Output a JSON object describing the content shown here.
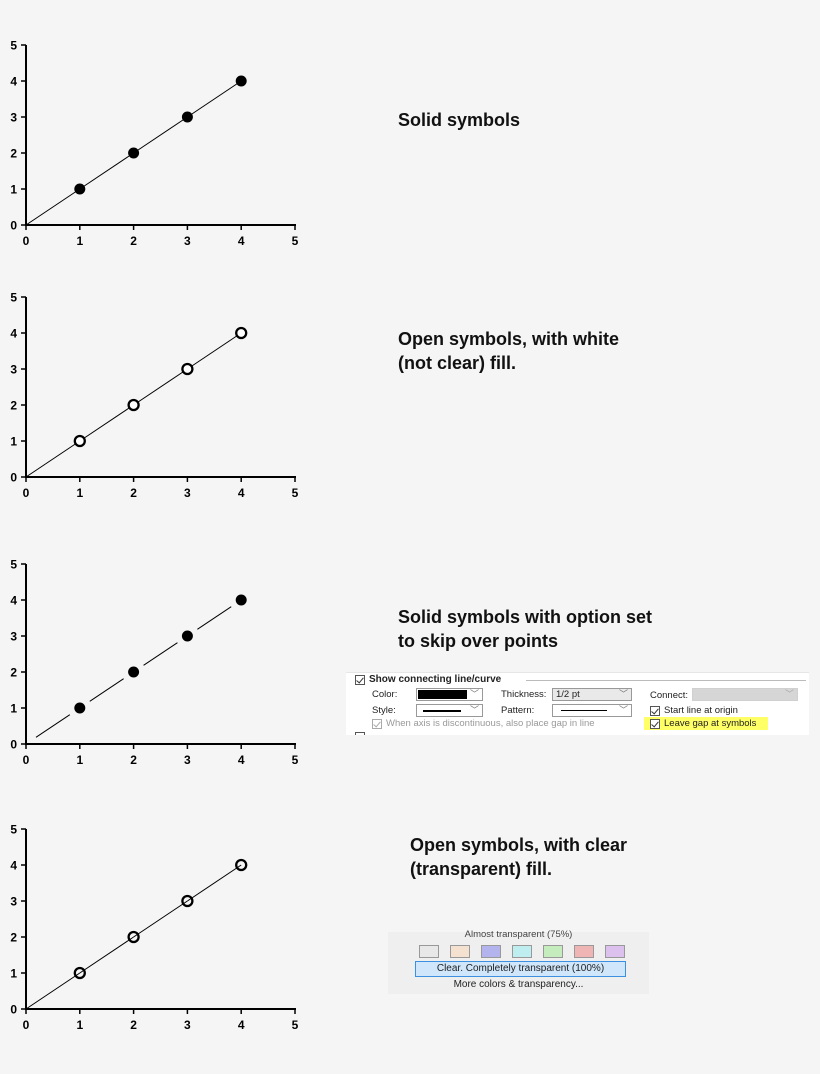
{
  "chart_data": [
    {
      "type": "scatter",
      "title": "Solid symbols",
      "x": [
        1,
        2,
        3,
        4
      ],
      "y": [
        1,
        2,
        3,
        4
      ],
      "line": {
        "connected": true,
        "start_at_origin": true,
        "gap_at_symbols": false
      },
      "symbol": {
        "shape": "circle",
        "fill": "solid",
        "color": "#000000"
      },
      "xlim": [
        0,
        5
      ],
      "ylim": [
        0,
        5
      ],
      "xticks": [
        "0",
        "1",
        "2",
        "3",
        "4",
        "5"
      ],
      "yticks": [
        "0",
        "1",
        "2",
        "3",
        "4",
        "5"
      ],
      "xlabel": "",
      "ylabel": "",
      "grid": false
    },
    {
      "type": "scatter",
      "title": "Open symbols, with white (not clear) fill.",
      "x": [
        1,
        2,
        3,
        4
      ],
      "y": [
        1,
        2,
        3,
        4
      ],
      "line": {
        "connected": true,
        "start_at_origin": true,
        "gap_at_symbols": false
      },
      "symbol": {
        "shape": "circle",
        "fill": "white",
        "color": "#000000"
      },
      "xlim": [
        0,
        5
      ],
      "ylim": [
        0,
        5
      ],
      "xticks": [
        "0",
        "1",
        "2",
        "3",
        "4",
        "5"
      ],
      "yticks": [
        "0",
        "1",
        "2",
        "3",
        "4",
        "5"
      ],
      "xlabel": "",
      "ylabel": "",
      "grid": false
    },
    {
      "type": "scatter",
      "title": "Solid symbols with option set to skip over points",
      "x": [
        1,
        2,
        3,
        4
      ],
      "y": [
        1,
        2,
        3,
        4
      ],
      "line": {
        "connected": true,
        "start_at_origin": true,
        "gap_at_symbols": true
      },
      "symbol": {
        "shape": "circle",
        "fill": "solid",
        "color": "#000000"
      },
      "xlim": [
        0,
        5
      ],
      "ylim": [
        0,
        5
      ],
      "xticks": [
        "0",
        "1",
        "2",
        "3",
        "4",
        "5"
      ],
      "yticks": [
        "0",
        "1",
        "2",
        "3",
        "4",
        "5"
      ],
      "xlabel": "",
      "ylabel": "",
      "grid": false
    },
    {
      "type": "scatter",
      "title": "Open symbols, with clear (transparent) fill.",
      "x": [
        1,
        2,
        3,
        4
      ],
      "y": [
        1,
        2,
        3,
        4
      ],
      "line": {
        "connected": true,
        "start_at_origin": true,
        "gap_at_symbols": false
      },
      "symbol": {
        "shape": "circle",
        "fill": "transparent",
        "color": "#000000"
      },
      "xlim": [
        0,
        5
      ],
      "ylim": [
        0,
        5
      ],
      "xticks": [
        "0",
        "1",
        "2",
        "3",
        "4",
        "5"
      ],
      "yticks": [
        "0",
        "1",
        "2",
        "3",
        "4",
        "5"
      ],
      "xlabel": "",
      "ylabel": "",
      "grid": false
    }
  ],
  "captions": {
    "c1": "Solid symbols",
    "c2": "Open symbols, with white\n(not clear) fill.",
    "c3": "Solid symbols with option set\nto skip over points",
    "c4": "Open symbols, with clear\n(transparent) fill."
  },
  "line_panel": {
    "show_line_label": "Show connecting line/curve",
    "color_label": "Color:",
    "color_value": "#000000",
    "thickness_label": "Thickness:",
    "thickness_value": "1/2 pt",
    "connect_label": "Connect:",
    "style_label": "Style:",
    "pattern_label": "Pattern:",
    "start_origin_label": "Start line at origin",
    "discontinuous_label": "When axis is discontinuous, also place gap in line",
    "leave_gap_label": "Leave gap at symbols",
    "highlight_color": "#ffff66"
  },
  "fill_panel": {
    "header": "Almost transparent (75%)",
    "swatches": [
      "#e8e8e8",
      "#f5e1cf",
      "#b3b3ee",
      "#bfeef0",
      "#c5ecbd",
      "#efb5b5",
      "#dcc0ee"
    ],
    "clear_option": "Clear. Completely transparent (100%)",
    "more_option": "More colors & transparency..."
  }
}
